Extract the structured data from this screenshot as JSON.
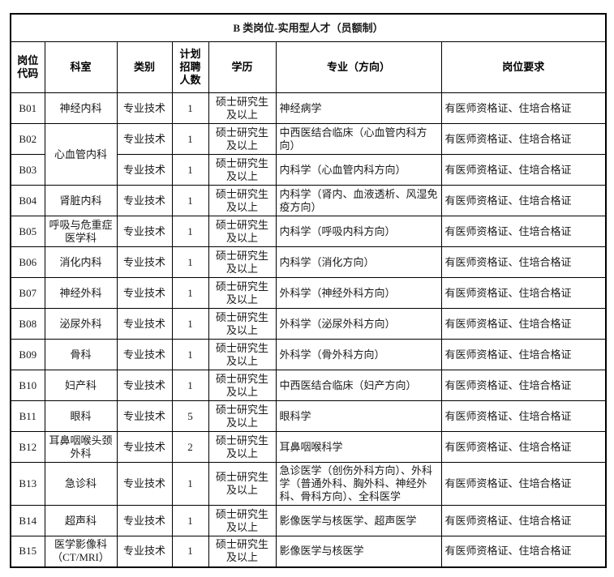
{
  "table": {
    "title": "B 类岗位-实用型人才（员额制）",
    "headers": [
      "岗位代码",
      "科室",
      "类别",
      "计划招聘人数",
      "学历",
      "专业（方向）",
      "岗位要求"
    ],
    "rows": [
      {
        "code": "B01",
        "dept": "神经内科",
        "dept_rowspan": 1,
        "category": "专业技术",
        "count": "1",
        "education": "硕士研究生及以上",
        "major": "神经病学",
        "requirement": "有医师资格证、住培合格证"
      },
      {
        "code": "B02",
        "dept": "心血管内科",
        "dept_rowspan": 2,
        "category": "专业技术",
        "count": "1",
        "education": "硕士研究生及以上",
        "major": "中西医结合临床（心血管内科方向）",
        "requirement": "有医师资格证、住培合格证"
      },
      {
        "code": "B03",
        "dept": null,
        "dept_rowspan": 0,
        "category": "专业技术",
        "count": "1",
        "education": "硕士研究生及以上",
        "major": "内科学（心血管内科方向）",
        "requirement": "有医师资格证、住培合格证"
      },
      {
        "code": "B04",
        "dept": "肾脏内科",
        "dept_rowspan": 1,
        "category": "专业技术",
        "count": "1",
        "education": "硕士研究生及以上",
        "major": "内科学（肾内、血液透析、风湿免疫方向）",
        "requirement": "有医师资格证、住培合格证"
      },
      {
        "code": "B05",
        "dept": "呼吸与危重症医学科",
        "dept_rowspan": 1,
        "category": "专业技术",
        "count": "1",
        "education": "硕士研究生及以上",
        "major": "内科学（呼吸内科方向）",
        "requirement": "有医师资格证、住培合格证"
      },
      {
        "code": "B06",
        "dept": "消化内科",
        "dept_rowspan": 1,
        "category": "专业技术",
        "count": "1",
        "education": "硕士研究生及以上",
        "major": "内科学（消化方向）",
        "requirement": "有医师资格证、住培合格证"
      },
      {
        "code": "B07",
        "dept": "神经外科",
        "dept_rowspan": 1,
        "category": "专业技术",
        "count": "1",
        "education": "硕士研究生及以上",
        "major": "外科学（神经外科方向）",
        "requirement": "有医师资格证、住培合格证"
      },
      {
        "code": "B08",
        "dept": "泌尿外科",
        "dept_rowspan": 1,
        "category": "专业技术",
        "count": "1",
        "education": "硕士研究生及以上",
        "major": "外科学（泌尿外科方向）",
        "requirement": "有医师资格证、住培合格证"
      },
      {
        "code": "B09",
        "dept": "骨科",
        "dept_rowspan": 1,
        "category": "专业技术",
        "count": "1",
        "education": "硕士研究生及以上",
        "major": "外科学（骨外科方向）",
        "requirement": "有医师资格证、住培合格证"
      },
      {
        "code": "B10",
        "dept": "妇产科",
        "dept_rowspan": 1,
        "category": "专业技术",
        "count": "1",
        "education": "硕士研究生及以上",
        "major": "中西医结合临床（妇产方向）",
        "requirement": "有医师资格证、住培合格证"
      },
      {
        "code": "B11",
        "dept": "眼科",
        "dept_rowspan": 1,
        "category": "专业技术",
        "count": "5",
        "education": "硕士研究生及以上",
        "major": "眼科学",
        "requirement": "有医师资格证、住培合格证"
      },
      {
        "code": "B12",
        "dept": "耳鼻咽喉头颈外科",
        "dept_rowspan": 1,
        "category": "专业技术",
        "count": "2",
        "education": "硕士研究生及以上",
        "major": "耳鼻咽喉科学",
        "requirement": "有医师资格证、住培合格证"
      },
      {
        "code": "B13",
        "dept": "急诊科",
        "dept_rowspan": 1,
        "category": "专业技术",
        "count": "1",
        "education": "硕士研究生及以上",
        "major": "急诊医学（创伤外科方向）、外科学（普通外科、胸外科、神经外科、骨科方向）、全科医学",
        "requirement": "有医师资格证、住培合格证"
      },
      {
        "code": "B14",
        "dept": "超声科",
        "dept_rowspan": 1,
        "category": "专业技术",
        "count": "1",
        "education": "硕士研究生及以上",
        "major": "影像医学与核医学、超声医学",
        "requirement": "有医师资格证、住培合格证"
      },
      {
        "code": "B15",
        "dept": "医学影像科（CT/MRI）",
        "dept_rowspan": 1,
        "category": "专业技术",
        "count": "1",
        "education": "硕士研究生及以上",
        "major": "影像医学与核医学",
        "requirement": "有医师资格证、住培合格证"
      }
    ]
  }
}
